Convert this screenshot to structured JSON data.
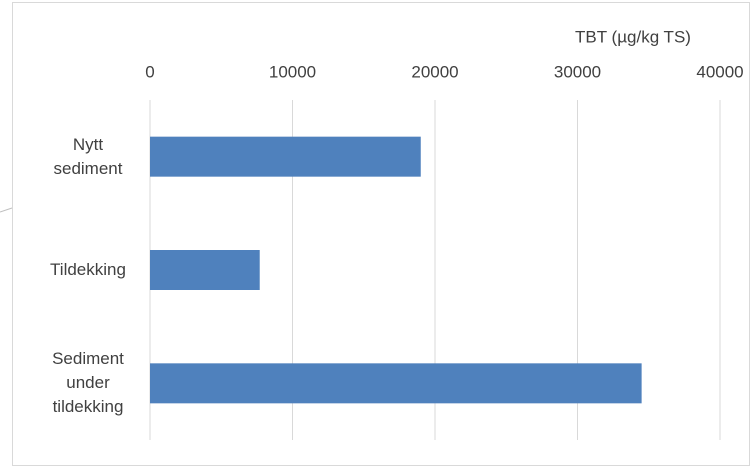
{
  "chart_data": {
    "type": "bar",
    "orientation": "horizontal",
    "title": "TBT (µg/kg TS)",
    "categories": [
      "Nytt sediment",
      "Tildekking",
      "Sediment under tildekking"
    ],
    "values": [
      19000,
      7700,
      34500
    ],
    "color": "#4f81bd",
    "xlim": [
      0,
      40000
    ],
    "xticks": [
      0,
      10000,
      20000,
      30000,
      40000
    ],
    "grid": true
  }
}
